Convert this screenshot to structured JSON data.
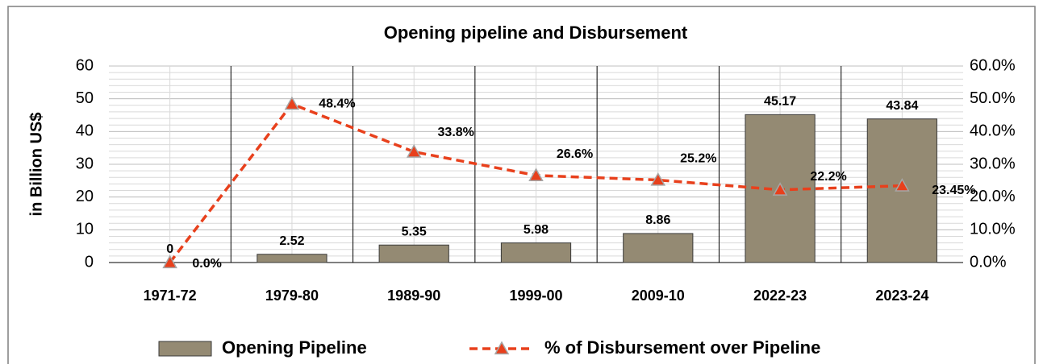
{
  "chart_data": {
    "type": "bar",
    "title": "Opening pipeline and Disbursement",
    "y_label": "in Billion US$",
    "categories": [
      "1971-72",
      "1979-80",
      "1989-90",
      "1999-00",
      "2009-10",
      "2022-23",
      "2023-24"
    ],
    "series": [
      {
        "name": "Opening Pipeline",
        "type": "bar",
        "color": "#948a73",
        "values": [
          0,
          2.52,
          5.35,
          5.98,
          8.86,
          45.17,
          43.84
        ]
      },
      {
        "name": "% of Disbursement over Pipeline",
        "type": "line",
        "axis": "y2",
        "color": "#e8401c",
        "values": [
          0,
          48.4,
          33.8,
          26.6,
          25.2,
          22.2,
          23.45
        ],
        "value_labels": [
          "0.0%",
          "48.4%",
          "33.8%",
          "26.6%",
          "25.2%",
          "22.2%",
          "23.45%"
        ]
      }
    ],
    "ylim": [
      0,
      60
    ],
    "yticks": [
      0,
      10,
      20,
      30,
      40,
      50,
      60
    ],
    "y2lim": [
      0,
      60
    ],
    "y2ticks": [
      {
        "value": 0,
        "label": "0.0%"
      },
      {
        "value": 10,
        "label": "10.0%"
      },
      {
        "value": 20,
        "label": "20.0%"
      },
      {
        "value": 30,
        "label": "30.0%"
      },
      {
        "value": 40,
        "label": "40.0%"
      },
      {
        "value": 50,
        "label": "50.0%"
      },
      {
        "value": 60,
        "label": "60.0%"
      }
    ],
    "grid": true,
    "legend": "bottom"
  }
}
